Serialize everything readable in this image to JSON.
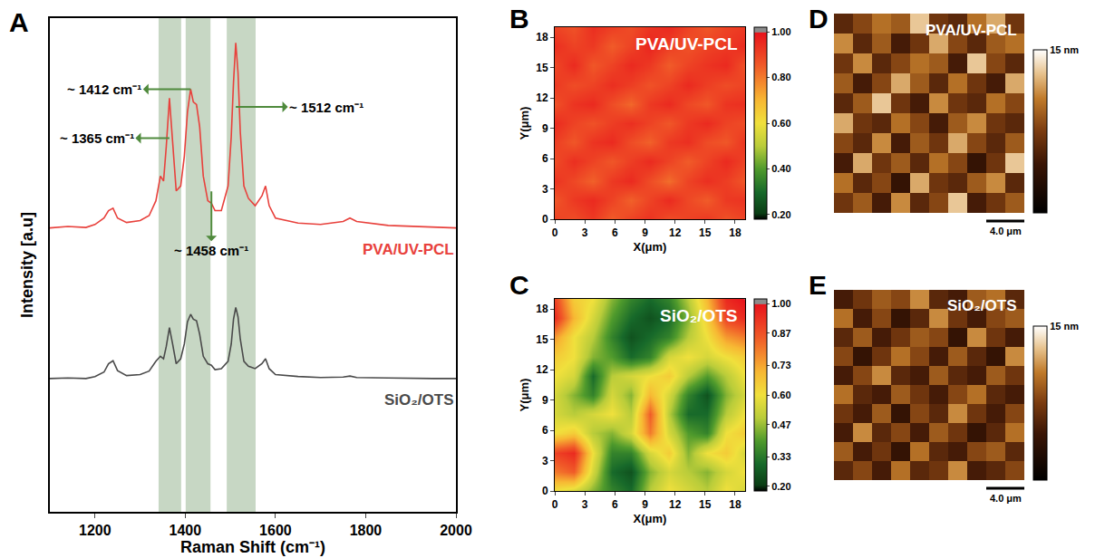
{
  "chart_data": [
    {
      "panel": "A",
      "type": "line",
      "x_label": "Raman Shift (cm⁻¹)",
      "y_label": "Intensity [a.u]",
      "x": [
        1100,
        1140,
        1180,
        1200,
        1220,
        1230,
        1240,
        1250,
        1270,
        1300,
        1320,
        1335,
        1345,
        1352,
        1358,
        1365,
        1372,
        1380,
        1390,
        1398,
        1405,
        1412,
        1418,
        1425,
        1432,
        1440,
        1450,
        1458,
        1466,
        1480,
        1495,
        1502,
        1507,
        1512,
        1517,
        1522,
        1530,
        1540,
        1555,
        1570,
        1578,
        1586,
        1600,
        1650,
        1700,
        1750,
        1765,
        1780,
        1850,
        1900,
        1950,
        2000
      ],
      "series": [
        {
          "name": "PVA/UV-PCL",
          "color": "#e8413c",
          "values": [
            57.5,
            57.8,
            57.6,
            58.2,
            59.5,
            61,
            61.5,
            59.5,
            58.6,
            59,
            60,
            63,
            68,
            67,
            74,
            83.8,
            75,
            65,
            66,
            72,
            81,
            85.6,
            83,
            82.5,
            78,
            68,
            63,
            62.5,
            61,
            61,
            66,
            76,
            87,
            95,
            89,
            77,
            66,
            63.5,
            62,
            64,
            66,
            62,
            59.5,
            58.5,
            58.2,
            58.8,
            59.5,
            58.8,
            58,
            57.8,
            57.6,
            57.5
          ]
        },
        {
          "name": "SiO₂/OTS",
          "color": "#4a4a4a",
          "values": [
            27,
            27.1,
            27,
            27.4,
            28.3,
            30,
            30.6,
            28.6,
            27.6,
            27.8,
            28.5,
            30.5,
            31.5,
            31,
            33.5,
            37.3,
            34,
            30,
            31,
            34,
            38.5,
            40,
            39,
            38.7,
            36,
            31.5,
            30,
            29.7,
            28.8,
            29,
            30.5,
            34,
            39,
            41.4,
            39.5,
            35,
            30.5,
            29.5,
            29,
            30,
            31,
            29,
            27.8,
            27.4,
            27.2,
            27.3,
            27.5,
            27.2,
            27.1,
            27,
            27,
            27
          ]
        }
      ],
      "xlim": [
        1100,
        2000
      ],
      "xticks": [
        1200,
        1400,
        1600,
        1800,
        2000
      ],
      "ylim": [
        0,
        100
      ],
      "tick_labels": "x",
      "grid": false,
      "bands": [
        [
          1341,
          1391
        ],
        [
          1401,
          1456
        ],
        [
          1492,
          1556
        ]
      ],
      "annotations": [
        {
          "text": "~ 1412 cm⁻¹",
          "x": 1412,
          "y": 85.6
        },
        {
          "text": "~ 1365 cm⁻¹",
          "x": 1365,
          "y": 75.7
        },
        {
          "text": "~ 1512 cm⁻¹",
          "x": 1512,
          "y": 82
        },
        {
          "text": "~ 1458 cm⁻¹",
          "x": 1458,
          "y": 64.9
        }
      ]
    },
    {
      "panel": "B",
      "type": "heatmap",
      "title": "PVA/UV-PCL",
      "x_label": "X(μm)",
      "y_label": "Y(μm)",
      "x": [
        0,
        1.9,
        3.8,
        5.7,
        7.6,
        9.5,
        11.4,
        13.3,
        15.2,
        17.1,
        19
      ],
      "y": [
        0,
        1.9,
        3.8,
        5.7,
        7.6,
        9.5,
        11.4,
        13.3,
        15.2,
        17.1,
        19
      ],
      "z": [
        [
          0.9,
          0.88,
          0.92,
          0.85,
          0.9,
          0.93,
          0.88,
          0.9,
          0.92,
          0.87,
          0.9
        ],
        [
          0.86,
          0.92,
          0.95,
          0.9,
          0.84,
          0.9,
          0.95,
          0.89,
          0.85,
          0.92,
          0.93
        ],
        [
          0.93,
          0.89,
          0.84,
          0.92,
          0.95,
          0.88,
          0.82,
          0.9,
          0.94,
          0.91,
          0.86
        ],
        [
          0.88,
          0.94,
          0.9,
          0.86,
          0.91,
          0.95,
          0.9,
          0.85,
          0.9,
          0.95,
          0.9
        ],
        [
          0.91,
          0.86,
          0.93,
          0.95,
          0.88,
          0.84,
          0.92,
          0.94,
          0.88,
          0.86,
          0.93
        ],
        [
          0.95,
          0.9,
          0.87,
          0.91,
          0.94,
          0.9,
          0.86,
          0.92,
          0.95,
          0.9,
          0.88
        ],
        [
          0.87,
          0.93,
          0.95,
          0.88,
          0.83,
          0.92,
          0.95,
          0.89,
          0.86,
          0.93,
          0.94
        ],
        [
          0.92,
          0.88,
          0.9,
          0.94,
          0.91,
          0.87,
          0.9,
          0.95,
          0.91,
          0.88,
          0.9
        ],
        [
          0.89,
          0.95,
          0.86,
          0.9,
          0.95,
          0.92,
          0.85,
          0.9,
          0.93,
          0.95,
          0.87
        ],
        [
          0.94,
          0.9,
          0.92,
          0.85,
          0.9,
          0.96,
          0.91,
          0.87,
          0.9,
          0.92,
          0.95
        ],
        [
          0.9,
          0.87,
          0.94,
          0.91,
          0.88,
          0.93,
          0.95,
          0.9,
          0.86,
          0.9,
          0.92
        ]
      ],
      "xlim": [
        0,
        19
      ],
      "ylim": [
        0,
        19
      ],
      "xticks": [
        0,
        3,
        6,
        9,
        12,
        15,
        18
      ],
      "yticks": [
        0,
        3,
        6,
        9,
        12,
        15,
        18
      ],
      "zlim": [
        0.18,
        1.02
      ],
      "zticks": [
        {
          "value": 0.2,
          "label": "0.20"
        },
        {
          "value": 0.4,
          "label": "0.40"
        },
        {
          "value": 0.6,
          "label": "0.60"
        },
        {
          "value": 0.8,
          "label": "0.80"
        },
        {
          "value": 1,
          "label": "1.00"
        }
      ]
    },
    {
      "panel": "C",
      "type": "heatmap",
      "title": "SiO₂/OTS",
      "x_label": "X(μm)",
      "y_label": "Y(μm)",
      "x": [
        0,
        1.9,
        3.8,
        5.7,
        7.6,
        9.5,
        11.4,
        13.3,
        15.2,
        17.1,
        19
      ],
      "y": [
        0,
        1.9,
        3.8,
        5.7,
        7.6,
        9.5,
        11.4,
        13.3,
        15.2,
        17.1,
        19
      ],
      "z": [
        [
          0.6,
          0.55,
          0.45,
          0.35,
          0.3,
          0.5,
          0.6,
          0.55,
          0.5,
          0.6,
          0.55
        ],
        [
          0.8,
          0.85,
          0.55,
          0.3,
          0.25,
          0.45,
          0.55,
          0.5,
          0.45,
          0.55,
          0.6
        ],
        [
          0.9,
          0.95,
          0.6,
          0.35,
          0.35,
          0.55,
          0.65,
          0.45,
          0.6,
          0.65,
          0.55
        ],
        [
          0.6,
          0.65,
          0.5,
          0.45,
          0.55,
          0.8,
          0.55,
          0.4,
          0.35,
          0.6,
          0.65
        ],
        [
          0.55,
          0.5,
          0.55,
          0.6,
          0.5,
          0.85,
          0.5,
          0.3,
          0.3,
          0.5,
          0.6
        ],
        [
          0.55,
          0.45,
          0.35,
          0.55,
          0.45,
          0.7,
          0.55,
          0.35,
          0.25,
          0.45,
          0.55
        ],
        [
          0.6,
          0.55,
          0.3,
          0.5,
          0.55,
          0.6,
          0.65,
          0.5,
          0.4,
          0.5,
          0.6
        ],
        [
          0.65,
          0.6,
          0.45,
          0.4,
          0.3,
          0.35,
          0.55,
          0.6,
          0.55,
          0.6,
          0.65
        ],
        [
          0.75,
          0.6,
          0.5,
          0.35,
          0.25,
          0.3,
          0.35,
          0.5,
          0.6,
          0.75,
          0.8
        ],
        [
          0.95,
          0.7,
          0.55,
          0.4,
          0.3,
          0.25,
          0.3,
          0.45,
          0.65,
          0.9,
          0.95
        ],
        [
          0.9,
          0.65,
          0.6,
          0.45,
          0.35,
          0.3,
          0.35,
          0.5,
          0.7,
          0.95,
          1.0
        ]
      ],
      "xlim": [
        0,
        19
      ],
      "ylim": [
        0,
        19
      ],
      "xticks": [
        0,
        3,
        6,
        9,
        12,
        15,
        18
      ],
      "yticks": [
        0,
        3,
        6,
        9,
        12,
        15,
        18
      ],
      "zlim": [
        0.18,
        1.02
      ],
      "zticks": [
        {
          "value": 0.2,
          "label": "0.20"
        },
        {
          "value": 0.33,
          "label": "0.33"
        },
        {
          "value": 0.47,
          "label": "0.47"
        },
        {
          "value": 0.6,
          "label": "0.60"
        },
        {
          "value": 0.73,
          "label": "0.73"
        },
        {
          "value": 0.87,
          "label": "0.87"
        },
        {
          "value": 1,
          "label": "1.00"
        }
      ]
    },
    {
      "panel": "D",
      "type": "heatmap",
      "title": "PVA/UV-PCL",
      "tick_labels": false,
      "x": [
        1,
        3,
        5,
        7,
        9,
        11,
        13,
        15,
        17,
        19
      ],
      "y": [
        1,
        3,
        5,
        7,
        9,
        11,
        13,
        15,
        17,
        19
      ],
      "z": [
        [
          7,
          9,
          5,
          11,
          6,
          8,
          13,
          5,
          7,
          9
        ],
        [
          10,
          6,
          8,
          4,
          12,
          7,
          6,
          9,
          11,
          6
        ],
        [
          5,
          12,
          7,
          9,
          6,
          10,
          8,
          4,
          7,
          13
        ],
        [
          8,
          6,
          11,
          5,
          9,
          7,
          12,
          8,
          6,
          9
        ],
        [
          12,
          7,
          6,
          10,
          8,
          5,
          9,
          11,
          7,
          6
        ],
        [
          6,
          9,
          13,
          7,
          5,
          11,
          7,
          6,
          10,
          8
        ],
        [
          9,
          5,
          8,
          12,
          9,
          6,
          10,
          7,
          5,
          12
        ],
        [
          7,
          11,
          6,
          8,
          10,
          9,
          5,
          13,
          8,
          6
        ],
        [
          11,
          6,
          9,
          5,
          7,
          12,
          8,
          6,
          9,
          10
        ],
        [
          6,
          8,
          10,
          9,
          13,
          7,
          6,
          10,
          12,
          7
        ]
      ],
      "xlim": [
        0,
        20
      ],
      "ylim": [
        0,
        20
      ],
      "zlim": [
        0,
        15
      ],
      "zticks": [
        {
          "value": 15,
          "label": "15 nm"
        }
      ],
      "scale_bar": {
        "length": 4.0,
        "label": "4.0 μm"
      }
    },
    {
      "panel": "E",
      "type": "heatmap",
      "title": "SiO₂/OTS",
      "tick_labels": false,
      "x": [
        1,
        3,
        5,
        7,
        9,
        11,
        13,
        15,
        17,
        19
      ],
      "y": [
        1,
        3,
        5,
        7,
        9,
        11,
        13,
        15,
        17,
        19
      ],
      "z": [
        [
          6,
          8,
          5,
          10,
          6,
          7,
          11,
          5,
          6,
          8
        ],
        [
          9,
          5,
          7,
          4,
          10,
          6,
          5,
          8,
          9,
          6
        ],
        [
          5,
          11,
          6,
          8,
          5,
          9,
          7,
          4,
          6,
          10
        ],
        [
          7,
          5,
          9,
          4,
          8,
          6,
          11,
          7,
          5,
          8
        ],
        [
          10,
          6,
          5,
          9,
          7,
          5,
          8,
          10,
          6,
          5
        ],
        [
          5,
          8,
          11,
          6,
          5,
          9,
          6,
          5,
          9,
          7
        ],
        [
          8,
          4,
          7,
          10,
          8,
          5,
          9,
          6,
          4,
          11
        ],
        [
          6,
          9,
          5,
          7,
          9,
          8,
          4,
          11,
          7,
          5
        ],
        [
          10,
          5,
          8,
          4,
          6,
          11,
          7,
          5,
          8,
          9
        ],
        [
          5,
          7,
          9,
          8,
          11,
          6,
          5,
          9,
          10,
          6
        ]
      ],
      "xlim": [
        0,
        20
      ],
      "ylim": [
        0,
        20
      ],
      "zlim": [
        0,
        15
      ],
      "zticks": [
        {
          "value": 15,
          "label": "15 nm"
        }
      ],
      "scale_bar": {
        "length": 4.0,
        "label": "4.0 μm"
      }
    }
  ]
}
